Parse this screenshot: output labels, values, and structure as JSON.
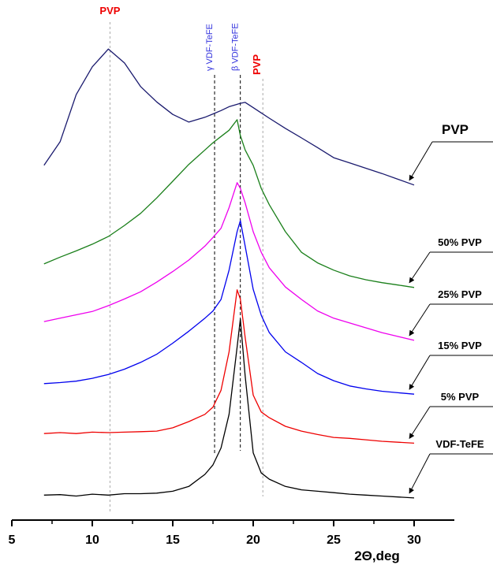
{
  "chart_data": {
    "type": "line",
    "x_label": "2Θ,deg",
    "xlim": [
      5,
      32.5
    ],
    "xticks": [
      5,
      10,
      15,
      20,
      25,
      30
    ],
    "xminorticks": [
      7.5,
      12.5,
      17.5,
      22.5,
      27.5
    ],
    "ylim": [
      0,
      100
    ],
    "x": [
      7,
      8,
      9,
      10,
      11,
      12,
      13,
      14,
      15,
      16,
      17,
      17.5,
      18,
      18.5,
      19,
      19.2,
      19.5,
      20,
      20.5,
      21,
      22,
      23,
      24,
      25,
      26,
      27,
      28,
      29,
      30
    ],
    "series": [
      {
        "name": "PVP",
        "color": "#1a1a6e",
        "values": [
          73.8,
          78.7,
          88.5,
          94.3,
          98,
          95.1,
          90.2,
          87,
          84.4,
          82.8,
          83.8,
          84.5,
          85.2,
          86,
          86.5,
          86.7,
          86.9,
          85.8,
          84.7,
          83.6,
          81.5,
          79.5,
          77.5,
          75.4,
          74.3,
          73.2,
          72.1,
          70.9,
          69.7
        ]
      },
      {
        "name": "50% PVP",
        "color": "#1a7f1a",
        "values": [
          53.3,
          54.7,
          56,
          57.4,
          59,
          61.3,
          63.8,
          67,
          70.5,
          74,
          77,
          78.5,
          79.8,
          81.1,
          83.3,
          80,
          77,
          73.8,
          69,
          65.6,
          60,
          55.7,
          53.5,
          52,
          50.8,
          50,
          49.4,
          48.9,
          48.4
        ]
      },
      {
        "name": "25% PVP",
        "color": "#ee00ee",
        "values": [
          41.3,
          42,
          42.7,
          43.4,
          44.6,
          46,
          47.5,
          49.5,
          51.7,
          54.1,
          57,
          58.8,
          60.7,
          65,
          70.2,
          69,
          66,
          60,
          55.7,
          52.5,
          48.5,
          45.9,
          43.5,
          42,
          41,
          40,
          39,
          38.2,
          37.4
        ]
      },
      {
        "name": "15% PVP",
        "color": "#0000ee",
        "values": [
          28.4,
          28.6,
          28.9,
          29.5,
          30.3,
          31.4,
          32.8,
          34.5,
          36.8,
          39.3,
          42,
          43.5,
          45.9,
          52,
          60,
          62.3,
          57,
          48,
          42.6,
          39,
          35,
          32.8,
          30.5,
          29,
          27.9,
          27.3,
          26.8,
          26.5,
          26.2
        ]
      },
      {
        "name": "5% PVP",
        "color": "#ee0000",
        "values": [
          18,
          18.2,
          18,
          18.3,
          18.2,
          18.3,
          18.4,
          18.5,
          19.2,
          20.5,
          22,
          23.5,
          27,
          35,
          47.9,
          46,
          38,
          26,
          22.5,
          21.3,
          19.5,
          18.5,
          17.8,
          17.2,
          17,
          16.7,
          16.4,
          16.2,
          16
        ]
      },
      {
        "name": "VDF-TeFE",
        "color": "#000000",
        "values": [
          5.2,
          5.3,
          5,
          5.4,
          5.2,
          5.5,
          5.5,
          5.6,
          6,
          7,
          9.5,
          11.5,
          15,
          22,
          36,
          41.8,
          30,
          14,
          9.8,
          8.5,
          7,
          6.3,
          6,
          5.7,
          5.4,
          5.2,
          5,
          4.8,
          4.6
        ]
      }
    ],
    "annotations": [
      {
        "x": 11.1,
        "label": "PVP",
        "color": "#ee0000",
        "line_color": "#aaaaaa"
      },
      {
        "x": 17.6,
        "label": "γ VDF-TeFE",
        "color": "#3333dd",
        "line_color": "#000000"
      },
      {
        "x": 19.2,
        "label": "β VDF-TeFE",
        "color": "#3333dd",
        "line_color": "#000000"
      },
      {
        "x": 20.6,
        "label": "PVP",
        "color": "#ee0000",
        "line_color": "#aaaaaa"
      }
    ]
  }
}
